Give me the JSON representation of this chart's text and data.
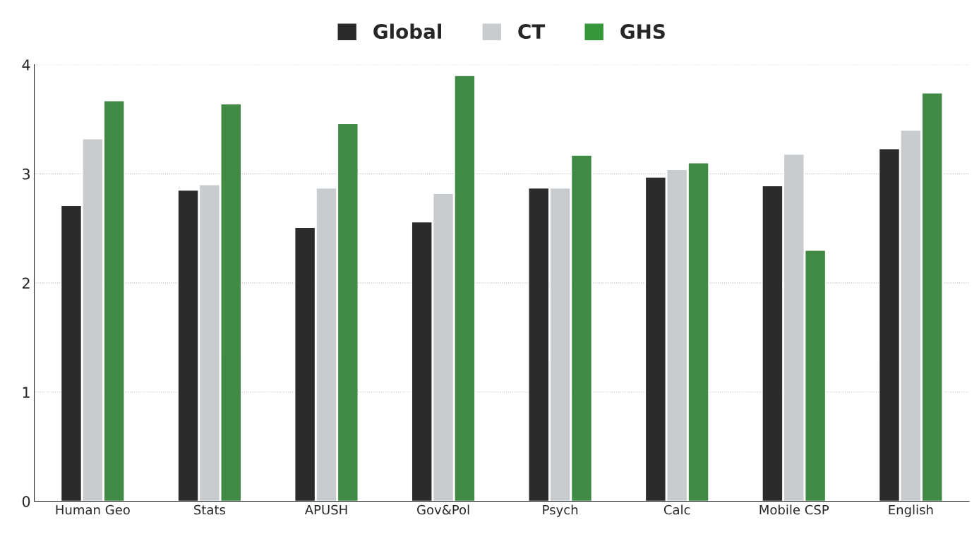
{
  "chart_data": {
    "type": "bar",
    "categories": [
      "Human Geo",
      "Stats",
      "APUSH",
      "Gov&Pol",
      "Psych",
      "Calc",
      "Mobile CSP",
      "English"
    ],
    "series": [
      {
        "name": "Global",
        "color": "#2b2b2b",
        "values": [
          2.71,
          2.85,
          2.51,
          2.56,
          2.87,
          2.97,
          2.89,
          3.23
        ]
      },
      {
        "name": "CT",
        "color": "#c8cccf",
        "values": [
          3.32,
          2.9,
          2.87,
          2.82,
          2.87,
          3.04,
          3.18,
          3.4
        ]
      },
      {
        "name": "GHS",
        "color": "#35963a",
        "values": [
          3.67,
          3.64,
          3.46,
          3.9,
          3.17,
          3.1,
          2.3,
          3.74
        ]
      }
    ],
    "ylim": [
      0,
      4
    ],
    "yticks": [
      0,
      1,
      2,
      3,
      4
    ],
    "grid": "y",
    "legend": "top"
  }
}
